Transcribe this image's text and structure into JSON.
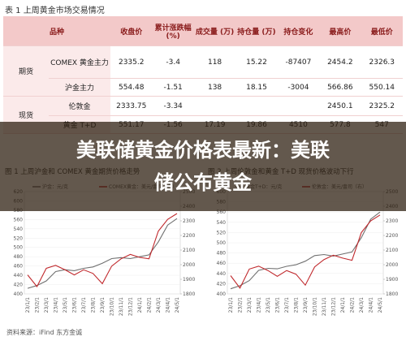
{
  "table": {
    "title": "表 1  上周黄金市场交易情况",
    "header": [
      "品种",
      "收盘价",
      "累计涨跌幅 (%)",
      "成交量 (万)",
      "持仓量 (万)",
      "持仓变化",
      "最高价",
      "最低价"
    ],
    "groups": [
      {
        "label": "期货",
        "rows": [
          [
            "COMEX 黄金主力",
            "2335.2",
            "-3.4",
            "118",
            "15.22",
            "-87407",
            "2454.2",
            "2326.3"
          ],
          [
            "沪金主力",
            "554.48",
            "-1.51",
            "138",
            "18.15",
            "-3004",
            "566.86",
            "550.14"
          ]
        ]
      },
      {
        "label": "现货",
        "rows": [
          [
            "伦敦金",
            "2333.75",
            "-3.34",
            null,
            null,
            null,
            "2450.1",
            "2325.2"
          ],
          [
            "黄金 T+D",
            "551.17",
            "-1.56",
            "17.19",
            "19.86",
            "4510",
            "577.8",
            "547"
          ]
        ]
      }
    ]
  },
  "banner": {
    "title": "美联储黄金价格表最新：美联储公布黄金"
  },
  "charts": [
    {
      "type": "line",
      "title": "图 1  上周沪金和 COMEX 黄金期货价格走势",
      "categories": [
        "23/1/1",
        "23/2/1",
        "23/3/1",
        "23/4/1",
        "23/5/1",
        "23/6/1",
        "23/7/1",
        "23/8/1",
        "23/9/1",
        "23/10/1",
        "23/11/1",
        "23/12/1",
        "24/1/1",
        "24/2/1",
        "24/3/1",
        "24/4/1",
        "24/5/1"
      ],
      "ylim": [
        400,
        620
      ],
      "yticks": [
        400,
        420,
        440,
        460,
        480,
        500,
        520,
        540,
        560,
        580,
        600,
        620
      ],
      "y2lim": [
        1800,
        2500
      ],
      "y2ticks": [
        1800,
        1900,
        2000,
        2100,
        2200,
        2300,
        2400,
        2500
      ],
      "series": [
        {
          "name": "沪金：元/克",
          "color": "#707070",
          "values": [
            412,
            418,
            428,
            448,
            452,
            450,
            455,
            458,
            466,
            476,
            478,
            476,
            480,
            484,
            512,
            548,
            562
          ]
        },
        {
          "name": "COMEX黄金：美元/盎司（右）",
          "color": "#c0282c",
          "axis": "y2",
          "values": [
            1930,
            1850,
            1975,
            1995,
            1965,
            1930,
            1965,
            1940,
            1870,
            1990,
            2040,
            2070,
            2050,
            2040,
            2230,
            2310,
            2350
          ]
        }
      ]
    },
    {
      "type": "line",
      "title": "图 2  上周伦敦金和黄金 T+D 现货价格波动下行",
      "categories": [
        "23/1/1",
        "23/2/1",
        "23/3/1",
        "23/4/1",
        "23/5/1",
        "23/6/1",
        "23/7/1",
        "23/8/1",
        "23/9/1",
        "23/10/1",
        "23/11/1",
        "23/12/1",
        "24/1/1",
        "24/2/1",
        "24/3/1",
        "24/4/1",
        "24/5/1"
      ],
      "ylim": [
        400,
        600
      ],
      "yticks": [
        400,
        420,
        440,
        460,
        480,
        500,
        520,
        540,
        560,
        580,
        600
      ],
      "y2lim": [
        1800,
        2500
      ],
      "y2ticks": [
        1800,
        1900,
        2000,
        2100,
        2200,
        2300,
        2400,
        2500
      ],
      "series": [
        {
          "name": "黄金T+D：元/克",
          "color": "#707070",
          "values": [
            410,
            416,
            426,
            446,
            450,
            449,
            454,
            457,
            464,
            475,
            477,
            474,
            478,
            482,
            510,
            546,
            560
          ]
        },
        {
          "name": "伦敦金：美元/盎司（右）",
          "color": "#c0282c",
          "axis": "y2",
          "values": [
            1925,
            1840,
            1970,
            1990,
            1960,
            1920,
            1960,
            1935,
            1860,
            1985,
            2035,
            2065,
            2045,
            2030,
            2220,
            2300,
            2340
          ]
        }
      ]
    }
  ],
  "footer": "资料来源：iFind  东方金诚"
}
